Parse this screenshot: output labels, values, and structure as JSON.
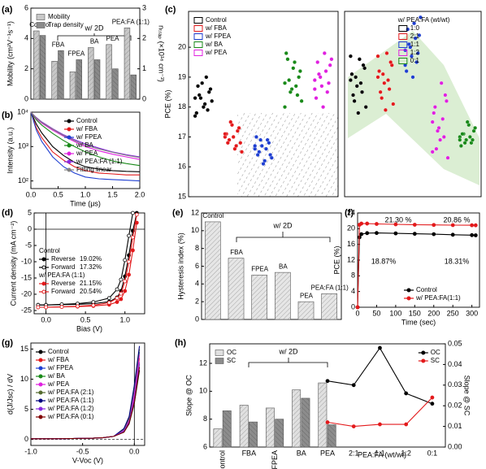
{
  "chart_data": [
    {
      "type": "bar",
      "label": "(a)",
      "categories": [
        "Control",
        "FBA",
        "FPEA",
        "BA",
        "PEA",
        "PEA:FA (1:1)"
      ],
      "category_labels": "inside",
      "series": [
        {
          "name": "Mobility",
          "color": "#c8c8c8",
          "values": [
            4.5,
            2.5,
            1.8,
            3.4,
            3.6,
            4.7
          ]
        },
        {
          "name": "Trap density",
          "color": "#8a8a8a",
          "axis": "y2",
          "values": [
            2.1,
            1.6,
            1.3,
            1.3,
            1.0,
            0.8
          ]
        }
      ],
      "ylim": [
        0,
        6
      ],
      "yticks": [
        0,
        2,
        4,
        6
      ],
      "y2lim": [
        0,
        3
      ],
      "y2ticks": [
        0,
        1,
        2,
        3
      ],
      "ylabel": "Mobility (cm²V⁻¹s⁻¹)",
      "y2label": "nₜᵣₐₚ (×10¹⁶ cm⁻³)",
      "annotations": [
        "w/ 2D"
      ],
      "legend": "upper left"
    },
    {
      "type": "line",
      "label": "(b)",
      "x": [
        0,
        0.1,
        0.2,
        0.4,
        0.6,
        0.8,
        1.0,
        1.25,
        1.5,
        1.75,
        2.0
      ],
      "series": [
        {
          "name": "Control",
          "color": "#000000",
          "values": [
            10000,
            4500,
            2500,
            1000,
            550,
            350,
            260,
            220,
            200,
            190,
            185
          ]
        },
        {
          "name": "w/ FBA",
          "color": "#e31a1c",
          "values": [
            10000,
            3500,
            1800,
            700,
            400,
            260,
            200,
            170,
            160,
            150,
            150
          ]
        },
        {
          "name": "w/ FPEA",
          "color": "#1f3fd1",
          "values": [
            10000,
            3000,
            1400,
            500,
            260,
            170,
            130,
            115,
            110,
            105,
            100
          ]
        },
        {
          "name": "w/ BA",
          "color": "#1a8a1a",
          "values": [
            10000,
            6000,
            4200,
            2400,
            1500,
            1000,
            700,
            500,
            380,
            320,
            280
          ]
        },
        {
          "name": "w/ PEA",
          "color": "#e020e0",
          "values": [
            10000,
            6500,
            4800,
            3000,
            2000,
            1400,
            1000,
            750,
            600,
            500,
            420
          ]
        },
        {
          "name": "w/ PEA:FA (1:1)",
          "color": "#8a2be2",
          "values": [
            10000,
            7000,
            5200,
            3300,
            2200,
            1600,
            1200,
            900,
            700,
            580,
            500
          ]
        },
        {
          "name": "Fitting linear",
          "color": "#808080",
          "values": [
            10000,
            6800,
            5000,
            3200,
            2100,
            1500,
            1100,
            850,
            680,
            560,
            480
          ]
        }
      ],
      "xlim": [
        0,
        2
      ],
      "xticks": [
        {
          "value": 0,
          "label": "0.0"
        },
        0.5,
        {
          "value": 1,
          "label": "1.0"
        },
        1.5,
        {
          "value": 2,
          "label": "2.0"
        }
      ],
      "ylim": [
        60,
        10000
      ],
      "ylog": true,
      "yticks": [
        {
          "value": 100,
          "label": "10²"
        },
        {
          "value": 1000,
          "label": "10³"
        },
        {
          "value": 10000,
          "label": "10⁴"
        }
      ],
      "xlabel": "Time (μs)",
      "ylabel": "Intensity (a.u.)",
      "legend": "upper right"
    },
    {
      "type": "scatter",
      "label": "(c)",
      "series": [
        {
          "name": "Control",
          "color": "#000000",
          "values": [
            18.3,
            18.6,
            17.9,
            18.1,
            18.8,
            18.4,
            17.8,
            18.2,
            18.5,
            19.0,
            18.0,
            18.3,
            18.7,
            17.7
          ]
        },
        {
          "name": "w/ FBA",
          "color": "#e31a1c",
          "values": [
            17.0,
            16.8,
            17.2,
            16.6,
            17.4,
            16.9,
            17.1,
            16.5,
            17.3,
            16.7,
            17.0,
            17.5,
            16.8,
            17.1
          ]
        },
        {
          "name": "w/ FPEA",
          "color": "#1f3fd1",
          "values": [
            16.6,
            16.4,
            16.9,
            16.2,
            16.7,
            16.5,
            17.0,
            16.3,
            16.8,
            16.6,
            16.1,
            16.9,
            16.4,
            16.7
          ]
        },
        {
          "name": "w/ BA",
          "color": "#1a8a1a",
          "values": [
            18.8,
            19.2,
            18.4,
            19.5,
            18.6,
            18.9,
            19.8,
            18.2,
            19.0,
            18.7,
            19.3,
            18.5,
            19.6,
            18.0
          ]
        },
        {
          "name": "w/ PEA",
          "color": "#e020e0",
          "values": [
            18.9,
            19.4,
            18.5,
            19.8,
            18.7,
            19.1,
            18.3,
            19.6,
            18.8,
            19.2,
            18.0,
            19.0,
            19.5,
            18.6
          ]
        }
      ],
      "ylim": [
        15,
        21.2
      ],
      "yticks": [
        15,
        16,
        17,
        18,
        19,
        20
      ],
      "ylabel": "PCE (%)",
      "legend": "upper left"
    },
    {
      "type": "scatter",
      "series": [
        {
          "name": "1:0",
          "color": "#000000",
          "values": [
            18.9,
            19.3,
            18.5,
            19.6,
            18.7,
            18.2,
            19.1,
            18.0,
            19.4,
            18.8,
            17.8,
            19.0,
            18.4,
            19.7
          ]
        },
        {
          "name": "2:1",
          "color": "#e31a1c",
          "values": [
            19.0,
            19.4,
            18.6,
            19.8,
            18.8,
            18.3,
            19.2,
            18.1,
            19.5,
            18.9,
            17.9,
            19.1,
            18.5,
            19.7
          ]
        },
        {
          "name": "1:1",
          "color": "#1f3fd1",
          "values": [
            19.9,
            20.4,
            19.5,
            20.8,
            19.7,
            20.1,
            19.2,
            21.0,
            19.8,
            20.3,
            19.0,
            20.0,
            20.6,
            19.4
          ]
        },
        {
          "name": "1:2",
          "color": "#e020e0",
          "values": [
            17.5,
            18.2,
            17.0,
            18.8,
            17.3,
            16.6,
            17.8,
            16.3,
            18.4,
            17.6,
            16.9,
            17.2,
            18.0,
            16.5
          ]
        },
        {
          "name": "0:1",
          "color": "#1a8a1a",
          "values": [
            17.0,
            17.2,
            16.8,
            17.4,
            16.9,
            17.1,
            16.7,
            17.3,
            16.9,
            17.0,
            17.5,
            16.8,
            17.1,
            16.9
          ]
        }
      ],
      "ylim": [
        15,
        21.2
      ],
      "legend": "upper right",
      "legend_title": "w/ PEA:FA (wt/wt)"
    },
    {
      "type": "line",
      "label": "(d)",
      "x": [
        -0.1,
        0,
        0.2,
        0.4,
        0.6,
        0.8,
        0.9,
        0.95,
        1.0,
        1.05,
        1.1,
        1.15
      ],
      "groups": [
        "Control",
        "w/ PEA:FA (1:1)"
      ],
      "series": [
        {
          "name": "Reverse",
          "efficiency": "19.02%",
          "group": 0,
          "color": "#000000",
          "marker": true,
          "values": [
            -23.3,
            -23.3,
            -23.2,
            -23.1,
            -22.9,
            -22.3,
            -21.0,
            -19.0,
            -14.5,
            -8.0,
            -0.5,
            5
          ]
        },
        {
          "name": "Forward",
          "efficiency": "17.32%",
          "group": 0,
          "color": "#000000",
          "marker": true,
          "open": true,
          "values": [
            -23.3,
            -23.3,
            -23.1,
            -22.9,
            -22.4,
            -21.2,
            -18.5,
            -15.5,
            -9.5,
            -2.0,
            5,
            null
          ]
        },
        {
          "name": "Reverse",
          "efficiency": "21.15%",
          "group": 1,
          "color": "#e31a1c",
          "marker": true,
          "values": [
            -24.0,
            -24.0,
            -23.9,
            -23.8,
            -23.6,
            -23.2,
            -22.4,
            -21.5,
            -19.0,
            -14.0,
            -6.5,
            2.0
          ]
        },
        {
          "name": "Forward",
          "efficiency": "20.54%",
          "group": 1,
          "color": "#e31a1c",
          "marker": true,
          "open": true,
          "values": [
            -24.0,
            -24.0,
            -23.9,
            -23.7,
            -23.4,
            -22.6,
            -21.2,
            -19.8,
            -16.0,
            -10.0,
            -2.5,
            4.5
          ]
        }
      ],
      "xlim": [
        -0.15,
        1.25
      ],
      "xticks": [
        {
          "value": 0,
          "label": "0.0"
        },
        0.5,
        {
          "value": 1,
          "label": "1.0"
        }
      ],
      "ylim": [
        -26,
        5
      ],
      "yticks": [
        -25,
        -20,
        -15,
        -10,
        -5,
        0,
        5
      ],
      "xlabel": "Bias (V)",
      "ylabel": "Current density (mA cm⁻²)",
      "legend": "center left"
    },
    {
      "type": "bar",
      "label": "(e)",
      "categories": [
        "Control",
        "FBA",
        "FPEA",
        "BA",
        "PEA",
        "PEA:FA (1:1)"
      ],
      "category_labels": "inside",
      "values": [
        11.0,
        6.9,
        5.0,
        5.3,
        2.0,
        2.9
      ],
      "color": "#e6e6e6",
      "ylim": [
        0,
        12
      ],
      "yticks": [
        0,
        2,
        4,
        6,
        8,
        10,
        12
      ],
      "ylabel": "Hysteresis index (%)",
      "annotations": [
        "w/ 2D"
      ]
    },
    {
      "type": "line",
      "label": "(f)",
      "x": [
        0,
        5,
        10,
        25,
        50,
        100,
        150,
        200,
        250,
        300,
        310
      ],
      "series": [
        {
          "name": "Control",
          "color": "#000000",
          "marker": true,
          "values": [
            0,
            17.8,
            18.6,
            18.87,
            18.9,
            18.8,
            18.7,
            18.6,
            18.45,
            18.35,
            18.31
          ]
        },
        {
          "name": "w/  PEA:FA(1:1)",
          "color": "#e31a1c",
          "marker": true,
          "values": [
            0,
            21.0,
            21.3,
            21.3,
            21.2,
            21.1,
            21.0,
            20.95,
            20.9,
            20.87,
            20.86
          ]
        }
      ],
      "xlim": [
        0,
        320
      ],
      "xticks": [
        0,
        50,
        100,
        150,
        200,
        250,
        300
      ],
      "ylim": [
        0,
        24
      ],
      "yticks": [
        0,
        4,
        8,
        12,
        16,
        20,
        24
      ],
      "xlabel": "Time (sec)",
      "ylabel": "PCE (%)",
      "legend": "lower right",
      "annotations": [
        "21.30 %",
        "20.86 %",
        "18.87%",
        "18.31%"
      ],
      "annotation_colors": [
        "#e31a1c",
        "#e31a1c",
        "#000000",
        "#000000"
      ]
    },
    {
      "type": "line",
      "label": "(g)",
      "x": [
        -1.0,
        -0.8,
        -0.6,
        -0.4,
        -0.3,
        -0.2,
        -0.1,
        -0.05,
        0,
        0.05
      ],
      "series": [
        {
          "name": "Control",
          "color": "#000000",
          "values": [
            0.1,
            0.1,
            0.15,
            0.2,
            0.3,
            0.5,
            1.2,
            2.6,
            6.0,
            11.5
          ]
        },
        {
          "name": "w/  FBA",
          "color": "#e31a1c",
          "values": [
            0.1,
            0.1,
            0.15,
            0.2,
            0.3,
            0.5,
            1.4,
            3.0,
            7.0,
            13.5
          ]
        },
        {
          "name": "w/  FPEA",
          "color": "#1f3fd1",
          "values": [
            0.1,
            0.1,
            0.15,
            0.2,
            0.3,
            0.5,
            1.6,
            3.3,
            8.0,
            14.5
          ]
        },
        {
          "name": "w/  BA",
          "color": "#1a8a1a",
          "values": [
            0.1,
            0.1,
            0.15,
            0.2,
            0.3,
            0.5,
            1.3,
            2.8,
            6.5,
            12.5
          ]
        },
        {
          "name": "w/  PEA",
          "color": "#e020e0",
          "values": [
            0.1,
            0.1,
            0.15,
            0.2,
            0.3,
            0.5,
            1.5,
            3.2,
            7.5,
            14.0
          ]
        },
        {
          "name": "w/  PEA:FA (2:1)",
          "color": "#556b2f",
          "values": [
            0.1,
            0.1,
            0.15,
            0.2,
            0.3,
            0.5,
            1.7,
            3.5,
            8.5,
            15.0
          ]
        },
        {
          "name": "w/  PEA:FA (1:1)",
          "color": "#000080",
          "values": [
            0.1,
            0.1,
            0.15,
            0.2,
            0.3,
            0.5,
            1.8,
            3.8,
            9.0,
            15.5
          ]
        },
        {
          "name": "w/  PEA:FA (1:2)",
          "color": "#8a2be2",
          "values": [
            0.1,
            0.1,
            0.15,
            0.2,
            0.3,
            0.5,
            1.4,
            2.9,
            6.8,
            12.8
          ]
        },
        {
          "name": "w/  PEA:FA (0:1)",
          "color": "#800000",
          "values": [
            0.1,
            0.1,
            0.15,
            0.2,
            0.3,
            0.5,
            1.2,
            2.7,
            6.2,
            12.0
          ]
        }
      ],
      "xlim": [
        -1.0,
        0.1
      ],
      "xticks": [
        {
          "value": -1,
          "label": "-1.0"
        },
        -0.5,
        {
          "value": 0,
          "label": "0.0"
        }
      ],
      "ylim": [
        -1,
        16
      ],
      "yticks": [
        0,
        5,
        10,
        15
      ],
      "xlabel": "V-Voc (V)",
      "ylabel": "d(J/Jsc) / dV",
      "legend": "upper left"
    },
    {
      "type": "bar",
      "label": "(h)",
      "categories": [
        "Control",
        "FBA",
        "FPEA",
        "BA",
        "PEA",
        "2:1",
        "1:1",
        "1:2",
        "0:1"
      ],
      "series": [
        {
          "name": "OC",
          "color": "#e0e0e0",
          "values": [
            7.3,
            9.0,
            8.8,
            10.1,
            10.6,
            null,
            null,
            null,
            null
          ]
        },
        {
          "name": "SC",
          "color": "#8c8c8c",
          "values": [
            8.6,
            7.8,
            8.0,
            9.5,
            7.6,
            null,
            null,
            null,
            null
          ]
        },
        {
          "name": "OC",
          "color": "#000000",
          "type": "line",
          "axis": "y2",
          "marker": true,
          "values": [
            null,
            null,
            null,
            null,
            0.032,
            0.03,
            0.048,
            0.026,
            0.021
          ]
        },
        {
          "name": "SC",
          "color": "#e31a1c",
          "type": "line",
          "axis": "y2",
          "marker": true,
          "values": [
            null,
            null,
            null,
            null,
            0.012,
            0.01,
            0.011,
            0.011,
            0.024
          ]
        }
      ],
      "ylim": [
        6,
        13.4
      ],
      "yticks": [
        6,
        8,
        10,
        12
      ],
      "y2lim": [
        0,
        0.05
      ],
      "y2ticks": [
        {
          "value": 0,
          "label": "0.00"
        },
        0.01,
        0.02,
        0.03,
        0.04,
        0.05
      ],
      "xlabel": "PEA:FA (wt/wt)",
      "ylabel": "Slope @ OC",
      "y2label": "Slope @ SC",
      "annotations": [
        "w/ 2D"
      ],
      "legend": "upper left",
      "legend2": "upper right"
    }
  ]
}
